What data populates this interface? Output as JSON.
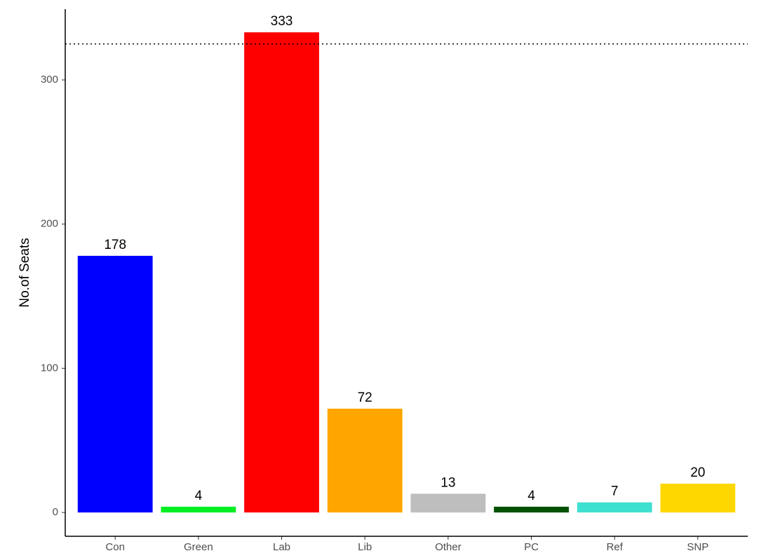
{
  "chart_data": {
    "type": "bar",
    "y_label": "No.of Seats",
    "categories": [
      "Con",
      "Green",
      "Lab",
      "Lib",
      "Other",
      "PC",
      "Ref",
      "SNP"
    ],
    "values": [
      178,
      4,
      333,
      72,
      13,
      4,
      7,
      20
    ],
    "colors": [
      "#0000ff",
      "#00ee22",
      "#ff0000",
      "#ffa500",
      "#bebebe",
      "#005000",
      "#40e0d0",
      "#ffd700"
    ],
    "ylim": [
      -16.5,
      349.1
    ],
    "yticks": [
      0,
      100,
      200,
      300
    ],
    "reference_line": 325,
    "grid": false
  }
}
